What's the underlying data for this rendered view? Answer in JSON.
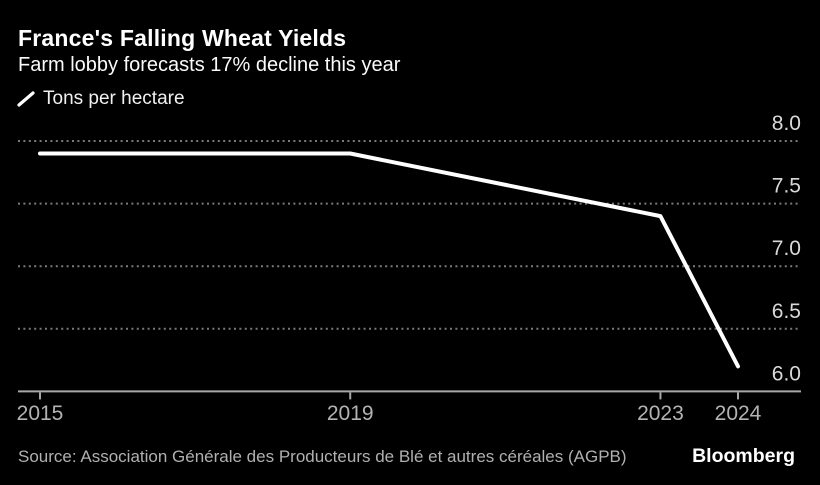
{
  "chart_data": {
    "type": "line",
    "title": "France's Falling Wheat Yields",
    "subtitle": "Farm lobby forecasts 17% decline this year",
    "series": [
      {
        "name": "Tons per hectare",
        "x": [
          2015,
          2019,
          2023,
          2024
        ],
        "values": [
          7.9,
          7.9,
          7.4,
          6.2
        ]
      }
    ],
    "x_ticks": [
      2015,
      2019,
      2023,
      2024
    ],
    "x_tick_labels": [
      "2015",
      "2019",
      "2023",
      "2024"
    ],
    "y_ticks": [
      8.0,
      7.5,
      7.0,
      6.5,
      6.0
    ],
    "y_tick_labels": [
      "8.0",
      "7.5",
      "7.0",
      "6.5",
      "6.0"
    ],
    "xlim": [
      2015,
      2024
    ],
    "ylim": [
      6.0,
      8.0
    ],
    "xlabel": "",
    "ylabel": "",
    "grid": "horizontal dotted",
    "legend_position": "top-left",
    "y_axis_side": "right"
  },
  "colors": {
    "background": "#000000",
    "line": "#ffffff",
    "grid": "#7a7a7a",
    "axis": "#a8a8a8",
    "y_tick_label": "#d9d9d9",
    "x_tick_label": "#b3b3b3",
    "title": "#ffffff",
    "subtitle": "#fafafa",
    "source": "#b0b0b0"
  },
  "footer": {
    "source": "Source: Association Générale des Producteurs de Blé et autres céréales (AGPB)",
    "brand": "Bloomberg"
  }
}
